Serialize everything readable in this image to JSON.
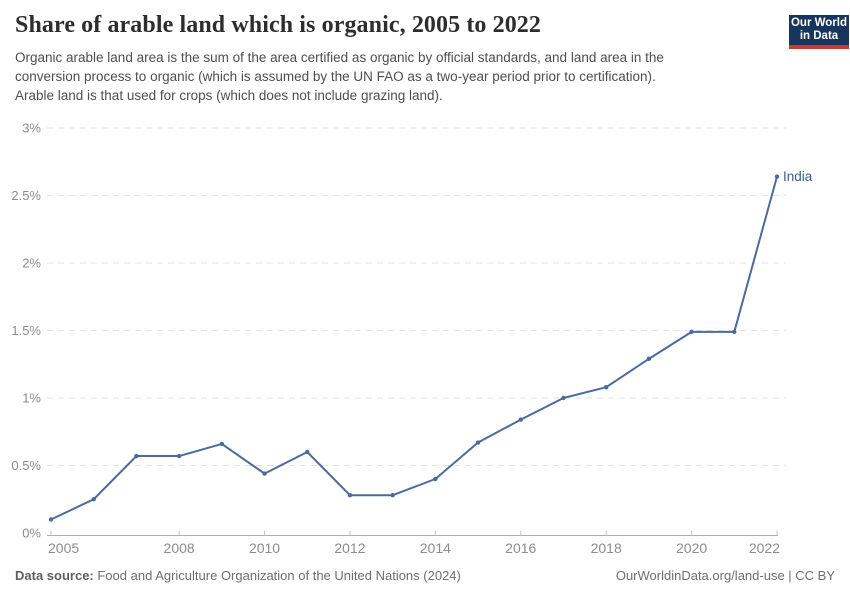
{
  "header": {
    "title": "Share of arable land which is organic, 2005 to 2022",
    "subtitle_lines": [
      "Organic arable land area is the sum of the area certified as organic by official standards, and land area in the",
      "conversion process to organic (which is assumed by the UN FAO as a two-year period prior to certification).",
      "Arable land is that used for crops (which does not include grazing land)."
    ],
    "logo": {
      "line1": "Our World",
      "line2": "in Data"
    }
  },
  "colors": {
    "line": "#4c6a9c",
    "navy": "#18365d",
    "red": "#c93b2b",
    "grid": "#e2e2e2",
    "axis": "#adadad",
    "ticklab": "#8c8c8c",
    "title": "#2d2d2d",
    "subtitle": "#4e4e4e",
    "footer": "#6e6e6e",
    "entity": "#3d5a8f"
  },
  "chart_data": {
    "type": "line",
    "title": "Share of arable land which is organic, 2005 to 2022",
    "xlabel": "",
    "ylabel": "",
    "xlim": [
      2005,
      2022
    ],
    "ylim": [
      0,
      3
    ],
    "grid": "horizontal-dashed",
    "legend_position": "end-of-line-label",
    "x": [
      2005,
      2006,
      2007,
      2008,
      2009,
      2010,
      2011,
      2012,
      2013,
      2014,
      2015,
      2016,
      2017,
      2018,
      2019,
      2020,
      2021,
      2022
    ],
    "series": [
      {
        "name": "India",
        "values": [
          0.1,
          0.25,
          0.57,
          0.57,
          0.66,
          0.44,
          0.6,
          0.28,
          0.28,
          0.4,
          0.67,
          0.84,
          1.0,
          1.08,
          1.29,
          1.49,
          1.49,
          2.64
        ]
      }
    ],
    "x_ticks": [
      2005,
      2008,
      2010,
      2012,
      2014,
      2016,
      2018,
      2020,
      2022
    ],
    "y_ticks": [
      {
        "value": 0,
        "label": "0%"
      },
      {
        "value": 0.5,
        "label": "0.5%"
      },
      {
        "value": 1,
        "label": "1%"
      },
      {
        "value": 1.5,
        "label": "1.5%"
      },
      {
        "value": 2,
        "label": "2%"
      },
      {
        "value": 2.5,
        "label": "2.5%"
      },
      {
        "value": 3,
        "label": "3%"
      }
    ]
  },
  "footer": {
    "datasource_label": "Data source:",
    "datasource_text": " Food and Agriculture Organization of the United Nations (2024)",
    "credit": "OurWorldinData.org/land-use | CC BY"
  }
}
